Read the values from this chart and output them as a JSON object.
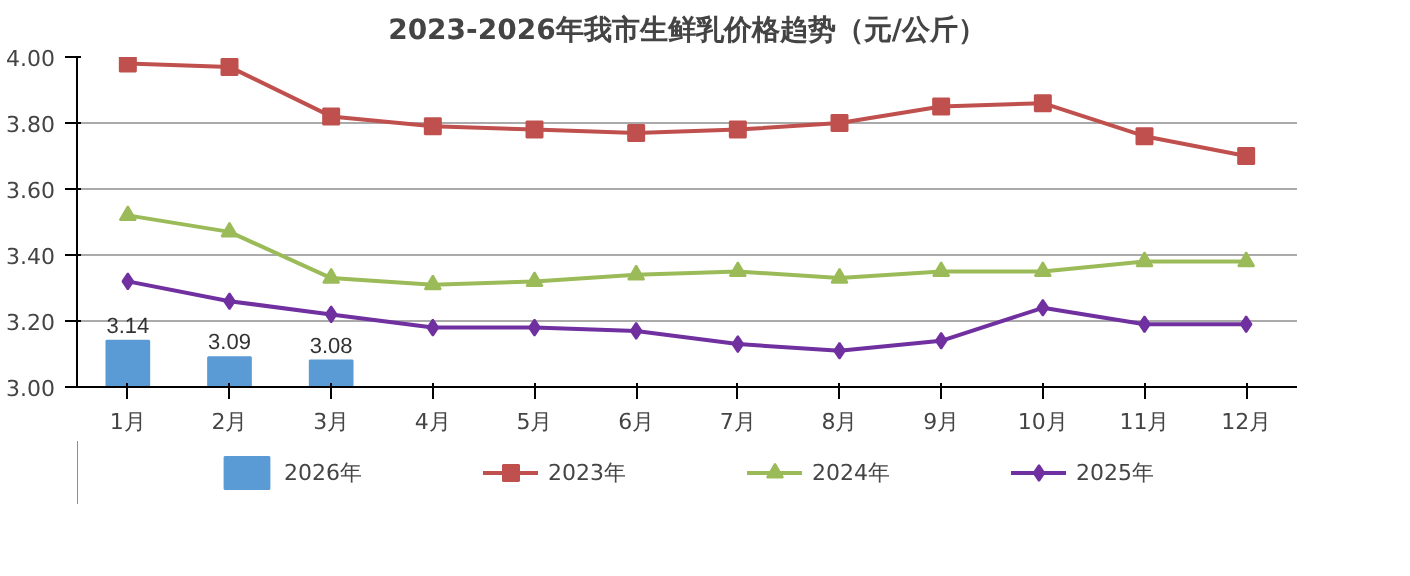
{
  "chart_data": {
    "type": "line",
    "title": "2023-2026年我市生鲜乳价格趋势（元/公斤）",
    "categories": [
      "1月",
      "2月",
      "3月",
      "4月",
      "5月",
      "6月",
      "7月",
      "8月",
      "9月",
      "10月",
      "11月",
      "12月"
    ],
    "series": [
      {
        "name": "2026年",
        "type": "bar",
        "color": "#5b9bd5",
        "values": [
          3.14,
          3.09,
          3.08,
          null,
          null,
          null,
          null,
          null,
          null,
          null,
          null,
          null
        ],
        "value_labels": [
          "3.14",
          "3.09",
          "3.08",
          null,
          null,
          null,
          null,
          null,
          null,
          null,
          null,
          null
        ]
      },
      {
        "name": "2023年",
        "color": "#c0504d",
        "marker": "square",
        "values": [
          3.98,
          3.97,
          3.82,
          3.79,
          3.78,
          3.77,
          3.78,
          3.8,
          3.85,
          3.86,
          3.76,
          3.7
        ]
      },
      {
        "name": "2024年",
        "color": "#9bbb59",
        "marker": "triangle",
        "values": [
          3.52,
          3.47,
          3.33,
          3.31,
          3.32,
          3.34,
          3.35,
          3.33,
          3.35,
          3.35,
          3.38,
          3.38
        ]
      },
      {
        "name": "2025年",
        "color": "#7030a0",
        "marker": "diamond",
        "values": [
          3.32,
          3.26,
          3.22,
          3.18,
          3.18,
          3.17,
          3.13,
          3.11,
          3.14,
          3.24,
          3.19,
          3.19
        ]
      }
    ],
    "ylim": [
      3.0,
      4.0
    ],
    "yticks": [
      {
        "value": 3.0,
        "label": "3.00"
      },
      {
        "value": 3.2,
        "label": "3.20"
      },
      {
        "value": 3.4,
        "label": "3.40"
      },
      {
        "value": 3.6,
        "label": "3.60"
      },
      {
        "value": 3.8,
        "label": "3.80"
      },
      {
        "value": 4.0,
        "label": "4.00"
      }
    ],
    "grid": "y",
    "legend": "bottom"
  }
}
